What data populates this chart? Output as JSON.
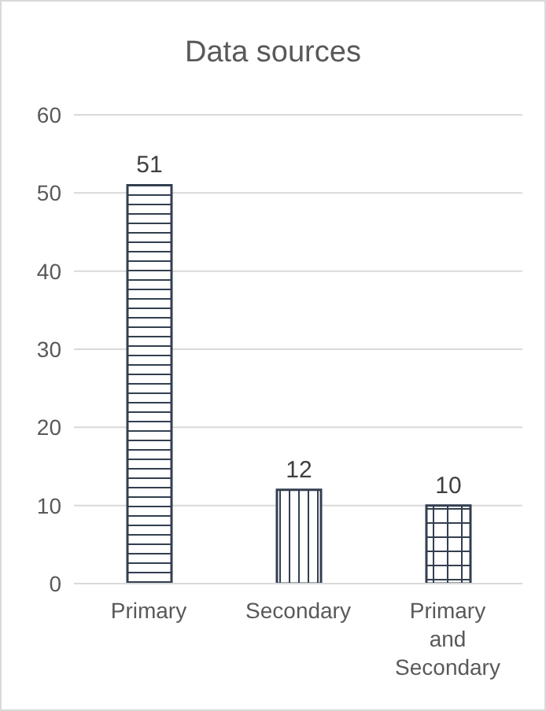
{
  "chart_data": {
    "type": "bar",
    "title": "Data sources",
    "categories": [
      "Primary",
      "Secondary",
      "Primary and Secondary"
    ],
    "values": [
      51,
      12,
      10
    ],
    "color": "#333f50",
    "ylim": [
      0,
      60
    ],
    "yticks": [
      0,
      10,
      20,
      30,
      40,
      50,
      60
    ],
    "grid": "y",
    "data_labels": true
  }
}
